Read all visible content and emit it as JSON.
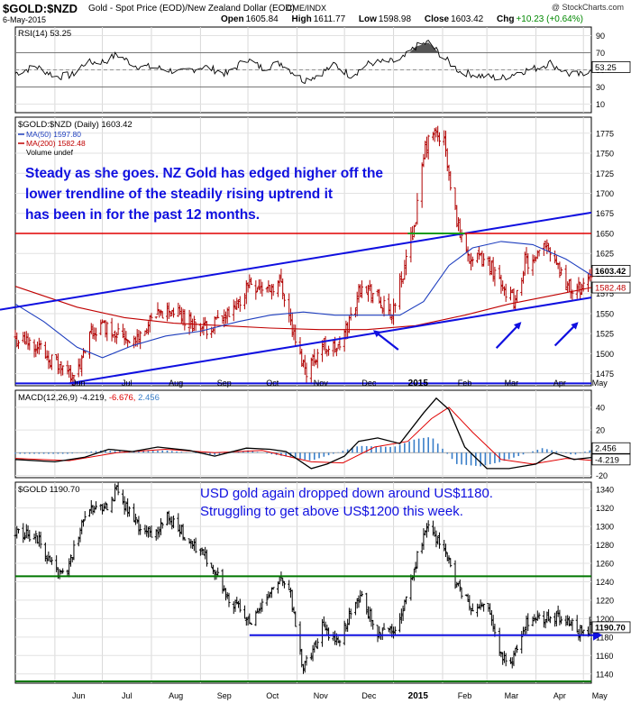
{
  "header": {
    "symbol": "$GOLD:$NZD",
    "description": "Gold - Spot Price (EOD)/New Zealand Dollar (EOD)",
    "source": "CME/INDX",
    "date": "6-May-2015",
    "watermark": "@ StockCharts.com",
    "open_label": "Open",
    "open": "1605.84",
    "high_label": "High",
    "high": "1611.77",
    "low_label": "Low",
    "low": "1598.98",
    "close_label": "Close",
    "close": "1603.42",
    "chg_label": "Chg",
    "chg": "+10.23 (+0.64%)"
  },
  "x_axis": {
    "months": [
      {
        "label": "Jun",
        "date": "2014-06-01"
      },
      {
        "label": "Jul",
        "date": "2014-07-01"
      },
      {
        "label": "Aug",
        "date": "2014-08-01"
      },
      {
        "label": "Sep",
        "date": "2014-09-01"
      },
      {
        "label": "Oct",
        "date": "2014-10-01"
      },
      {
        "label": "Nov",
        "date": "2014-11-01"
      },
      {
        "label": "Dec",
        "date": "2014-12-01"
      },
      {
        "label": "2015",
        "date": "2015-01-01",
        "bold": true
      },
      {
        "label": "Feb",
        "date": "2015-02-01"
      },
      {
        "label": "Mar",
        "date": "2015-03-01"
      },
      {
        "label": "Apr",
        "date": "2015-04-01"
      },
      {
        "label": "May",
        "date": "2015-05-01"
      }
    ]
  },
  "colors": {
    "price": "#b00000",
    "ma50": "#1f3fbf",
    "ma200": "#c00000",
    "trend": "#1010e0",
    "resistance": "#e00000",
    "support_usd": "#007700",
    "macd_line": "#000000",
    "signal_line": "#e00000",
    "histogram": "#3a7fc9",
    "annotation": "#1010e0",
    "rsi_overbought_fill": "#555555"
  },
  "chart_data": [
    {
      "panel": "rsi",
      "type": "line",
      "legend": "RSI(14) 53.25",
      "current_label": "53.25",
      "ticks": [
        10,
        30,
        50,
        70,
        90
      ],
      "ylim": [
        0,
        100
      ],
      "reference_lines": [
        30,
        50,
        70
      ],
      "points": [
        [
          "2014-05-07",
          46
        ],
        [
          "2014-05-20",
          54
        ],
        [
          "2014-06-02",
          42
        ],
        [
          "2014-06-12",
          44
        ],
        [
          "2014-06-20",
          58
        ],
        [
          "2014-07-03",
          60
        ],
        [
          "2014-07-10",
          68
        ],
        [
          "2014-07-22",
          55
        ],
        [
          "2014-08-05",
          52
        ],
        [
          "2014-08-20",
          47
        ],
        [
          "2014-09-03",
          54
        ],
        [
          "2014-09-18",
          45
        ],
        [
          "2014-09-30",
          63
        ],
        [
          "2014-10-10",
          52
        ],
        [
          "2014-10-22",
          58
        ],
        [
          "2014-11-05",
          38
        ],
        [
          "2014-11-14",
          44
        ],
        [
          "2014-11-25",
          56
        ],
        [
          "2014-12-05",
          43
        ],
        [
          "2014-12-17",
          58
        ],
        [
          "2015-01-05",
          60
        ],
        [
          "2015-01-15",
          77
        ],
        [
          "2015-01-23",
          82
        ],
        [
          "2015-02-03",
          62
        ],
        [
          "2015-02-12",
          48
        ],
        [
          "2015-02-25",
          43
        ],
        [
          "2015-03-10",
          40
        ],
        [
          "2015-03-20",
          47
        ],
        [
          "2015-04-01",
          52
        ],
        [
          "2015-04-10",
          58
        ],
        [
          "2015-04-22",
          45
        ],
        [
          "2015-05-01",
          44
        ],
        [
          "2015-05-06",
          53.25
        ]
      ]
    },
    {
      "panel": "price",
      "type": "ohlc",
      "legend": "$GOLD:$NZD (Daily) 1603.42",
      "legend_ma50": "MA(50) 1597.80",
      "legend_ma200": "MA(200) 1582.48",
      "legend_volume": "Volume undef",
      "current_label": "1603.42",
      "ma200_label": "1582.48",
      "ticks": [
        1475,
        1500,
        1525,
        1550,
        1575,
        1600,
        1625,
        1650,
        1675,
        1700,
        1725,
        1750,
        1775
      ],
      "ylim": [
        1460,
        1795
      ],
      "close_points": [
        [
          "2014-05-07",
          1518
        ],
        [
          "2014-05-20",
          1512
        ],
        [
          "2014-06-01",
          1488
        ],
        [
          "2014-06-08",
          1476
        ],
        [
          "2014-06-16",
          1478
        ],
        [
          "2014-06-24",
          1525
        ],
        [
          "2014-07-01",
          1535
        ],
        [
          "2014-07-10",
          1528
        ],
        [
          "2014-07-22",
          1515
        ],
        [
          "2014-08-01",
          1540
        ],
        [
          "2014-08-12",
          1555
        ],
        [
          "2014-08-22",
          1545
        ],
        [
          "2014-09-03",
          1530
        ],
        [
          "2014-09-12",
          1540
        ],
        [
          "2014-09-22",
          1550
        ],
        [
          "2014-10-02",
          1590
        ],
        [
          "2014-10-12",
          1580
        ],
        [
          "2014-10-22",
          1590
        ],
        [
          "2014-11-01",
          1505
        ],
        [
          "2014-11-07",
          1480
        ],
        [
          "2014-11-17",
          1510
        ],
        [
          "2014-11-27",
          1505
        ],
        [
          "2014-12-04",
          1540
        ],
        [
          "2014-12-12",
          1590
        ],
        [
          "2014-12-22",
          1568
        ],
        [
          "2014-12-30",
          1545
        ],
        [
          "2015-01-07",
          1600
        ],
        [
          "2015-01-15",
          1670
        ],
        [
          "2015-01-21",
          1755
        ],
        [
          "2015-01-26",
          1775
        ],
        [
          "2015-02-02",
          1765
        ],
        [
          "2015-02-06",
          1705
        ],
        [
          "2015-02-12",
          1650
        ],
        [
          "2015-02-20",
          1615
        ],
        [
          "2015-02-28",
          1618
        ],
        [
          "2015-03-07",
          1600
        ],
        [
          "2015-03-13",
          1580
        ],
        [
          "2015-03-19",
          1562
        ],
        [
          "2015-03-25",
          1615
        ],
        [
          "2015-03-31",
          1610
        ],
        [
          "2015-04-07",
          1640
        ],
        [
          "2015-04-13",
          1620
        ],
        [
          "2015-04-19",
          1590
        ],
        [
          "2015-04-25",
          1576
        ],
        [
          "2015-05-01",
          1585
        ],
        [
          "2015-05-06",
          1603.42
        ]
      ],
      "ma50_points": [
        [
          "2014-05-07",
          1562
        ],
        [
          "2014-05-25",
          1540
        ],
        [
          "2014-06-15",
          1508
        ],
        [
          "2014-07-01",
          1495
        ],
        [
          "2014-07-20",
          1510
        ],
        [
          "2014-08-10",
          1522
        ],
        [
          "2014-09-01",
          1528
        ],
        [
          "2014-09-25",
          1540
        ],
        [
          "2014-10-15",
          1548
        ],
        [
          "2014-11-05",
          1552
        ],
        [
          "2014-11-25",
          1548
        ],
        [
          "2014-12-15",
          1548
        ],
        [
          "2015-01-05",
          1548
        ],
        [
          "2015-01-20",
          1565
        ],
        [
          "2015-02-05",
          1610
        ],
        [
          "2015-02-20",
          1632
        ],
        [
          "2015-03-10",
          1640
        ],
        [
          "2015-03-30",
          1636
        ],
        [
          "2015-04-20",
          1618
        ],
        [
          "2015-05-06",
          1597.8
        ]
      ],
      "ma200_points": [
        [
          "2014-05-07",
          1584
        ],
        [
          "2014-06-15",
          1558
        ],
        [
          "2014-07-15",
          1545
        ],
        [
          "2014-08-15",
          1538
        ],
        [
          "2014-09-15",
          1535
        ],
        [
          "2014-10-15",
          1532
        ],
        [
          "2014-11-15",
          1530
        ],
        [
          "2014-12-15",
          1530
        ],
        [
          "2015-01-15",
          1535
        ],
        [
          "2015-02-15",
          1548
        ],
        [
          "2015-03-15",
          1562
        ],
        [
          "2015-04-15",
          1574
        ],
        [
          "2015-05-06",
          1582.48
        ]
      ],
      "lines": {
        "upper_channel": [
          [
            "2014-05-01",
            1556
          ],
          [
            "2015-05-06",
            1676
          ]
        ],
        "lower_channel": [
          [
            "2014-06-10",
            1463
          ],
          [
            "2015-05-06",
            1570
          ]
        ],
        "resistance": 1650,
        "base": 1463,
        "support_stub": [
          [
            "2015-01-10",
            1650
          ],
          [
            "2015-02-15",
            1650
          ]
        ]
      },
      "annotation": "Steady as she goes. NZ Gold has edged higher off the lower trendline of the steadily rising uptrend it has been in for the past 12 months.",
      "arrows": [
        {
          "from": [
            "2015-01-04",
            1505
          ],
          "to": [
            "2014-12-20",
            1528
          ]
        },
        {
          "from": [
            "2015-03-07",
            1507
          ],
          "to": [
            "2015-03-22",
            1538
          ]
        },
        {
          "from": [
            "2015-04-13",
            1510
          ],
          "to": [
            "2015-04-27",
            1538
          ]
        }
      ]
    },
    {
      "panel": "macd",
      "type": "line",
      "legend_name": "MACD(12,26,9)",
      "legend_macd": "-4.219",
      "legend_signal": "-6.676",
      "legend_hist": "2.456",
      "labels": {
        "histogram": "2.456",
        "macd": "-4.219"
      },
      "ticks": [
        -20,
        0,
        20,
        40
      ],
      "ylim": [
        -22,
        55
      ],
      "macd_points": [
        [
          "2014-05-07",
          -6
        ],
        [
          "2014-06-01",
          -8
        ],
        [
          "2014-06-20",
          -4
        ],
        [
          "2014-07-05",
          3
        ],
        [
          "2014-07-20",
          1
        ],
        [
          "2014-08-05",
          5
        ],
        [
          "2014-08-25",
          2
        ],
        [
          "2014-09-10",
          -3
        ],
        [
          "2014-09-30",
          4
        ],
        [
          "2014-10-15",
          3
        ],
        [
          "2014-10-25",
          1
        ],
        [
          "2014-11-10",
          -14
        ],
        [
          "2014-11-20",
          -10
        ],
        [
          "2014-12-01",
          -3
        ],
        [
          "2014-12-10",
          10
        ],
        [
          "2014-12-22",
          13
        ],
        [
          "2015-01-05",
          8
        ],
        [
          "2015-01-20",
          35
        ],
        [
          "2015-01-28",
          48
        ],
        [
          "2015-02-05",
          38
        ],
        [
          "2015-02-15",
          5
        ],
        [
          "2015-03-01",
          -14
        ],
        [
          "2015-03-15",
          -14
        ],
        [
          "2015-04-01",
          -10
        ],
        [
          "2015-04-12",
          0
        ],
        [
          "2015-04-25",
          -6
        ],
        [
          "2015-05-06",
          -4.219
        ]
      ],
      "signal_points": [
        [
          "2014-05-07",
          -5
        ],
        [
          "2014-06-10",
          -7
        ],
        [
          "2014-07-10",
          0
        ],
        [
          "2014-08-10",
          3
        ],
        [
          "2014-09-10",
          0
        ],
        [
          "2014-10-10",
          2
        ],
        [
          "2014-11-10",
          -8
        ],
        [
          "2014-11-30",
          -9
        ],
        [
          "2014-12-20",
          5
        ],
        [
          "2015-01-10",
          10
        ],
        [
          "2015-01-25",
          30
        ],
        [
          "2015-02-05",
          40
        ],
        [
          "2015-02-20",
          18
        ],
        [
          "2015-03-10",
          -6
        ],
        [
          "2015-03-30",
          -10
        ],
        [
          "2015-04-20",
          -5
        ],
        [
          "2015-05-06",
          -6.676
        ]
      ],
      "histogram_points": [
        [
          "2014-05-15",
          -1
        ],
        [
          "2014-06-10",
          -1
        ],
        [
          "2014-07-01",
          2
        ],
        [
          "2014-07-20",
          1
        ],
        [
          "2014-08-10",
          2
        ],
        [
          "2014-09-10",
          -2
        ],
        [
          "2014-10-01",
          2
        ],
        [
          "2014-11-10",
          -7
        ],
        [
          "2014-12-10",
          6
        ],
        [
          "2015-01-01",
          5
        ],
        [
          "2015-01-15",
          12
        ],
        [
          "2015-01-25",
          14
        ],
        [
          "2015-02-10",
          -10
        ],
        [
          "2015-02-25",
          -12
        ],
        [
          "2015-03-10",
          -8
        ],
        [
          "2015-04-05",
          4
        ],
        [
          "2015-04-25",
          -2
        ],
        [
          "2015-05-06",
          2.456
        ]
      ]
    },
    {
      "panel": "usd",
      "type": "ohlc",
      "legend": "$GOLD 1190.70",
      "current_label": "1190.70",
      "ticks": [
        1140,
        1160,
        1180,
        1200,
        1220,
        1240,
        1260,
        1280,
        1300,
        1320,
        1340
      ],
      "ylim": [
        1130,
        1348
      ],
      "close_points": [
        [
          "2014-05-07",
          1295
        ],
        [
          "2014-05-20",
          1290
        ],
        [
          "2014-06-01",
          1250
        ],
        [
          "2014-06-08",
          1245
        ],
        [
          "2014-06-20",
          1315
        ],
        [
          "2014-07-05",
          1325
        ],
        [
          "2014-07-10",
          1340
        ],
        [
          "2014-07-22",
          1305
        ],
        [
          "2014-08-01",
          1290
        ],
        [
          "2014-08-12",
          1310
        ],
        [
          "2014-08-25",
          1285
        ],
        [
          "2014-09-05",
          1265
        ],
        [
          "2014-09-18",
          1225
        ],
        [
          "2014-10-03",
          1195
        ],
        [
          "2014-10-20",
          1245
        ],
        [
          "2014-10-28",
          1225
        ],
        [
          "2014-11-05",
          1145
        ],
        [
          "2014-11-17",
          1190
        ],
        [
          "2014-11-28",
          1175
        ],
        [
          "2014-12-05",
          1210
        ],
        [
          "2014-12-12",
          1225
        ],
        [
          "2014-12-22",
          1180
        ],
        [
          "2014-12-31",
          1185
        ],
        [
          "2015-01-07",
          1215
        ],
        [
          "2015-01-15",
          1260
        ],
        [
          "2015-01-22",
          1300
        ],
        [
          "2015-02-02",
          1280
        ],
        [
          "2015-02-09",
          1240
        ],
        [
          "2015-02-20",
          1210
        ],
        [
          "2015-03-02",
          1210
        ],
        [
          "2015-03-10",
          1160
        ],
        [
          "2015-03-17",
          1150
        ],
        [
          "2015-03-25",
          1195
        ],
        [
          "2015-04-02",
          1205
        ],
        [
          "2015-04-10",
          1200
        ],
        [
          "2015-04-20",
          1200
        ],
        [
          "2015-04-28",
          1185
        ],
        [
          "2015-05-06",
          1190.7
        ]
      ],
      "lines": {
        "upper_support": 1246,
        "base": 1132,
        "level": {
          "value": 1182,
          "from": "2014-10-02"
        }
      },
      "annotation": "USD gold again dropped down around US$1180. Struggling to get above US$1200 this week."
    }
  ]
}
